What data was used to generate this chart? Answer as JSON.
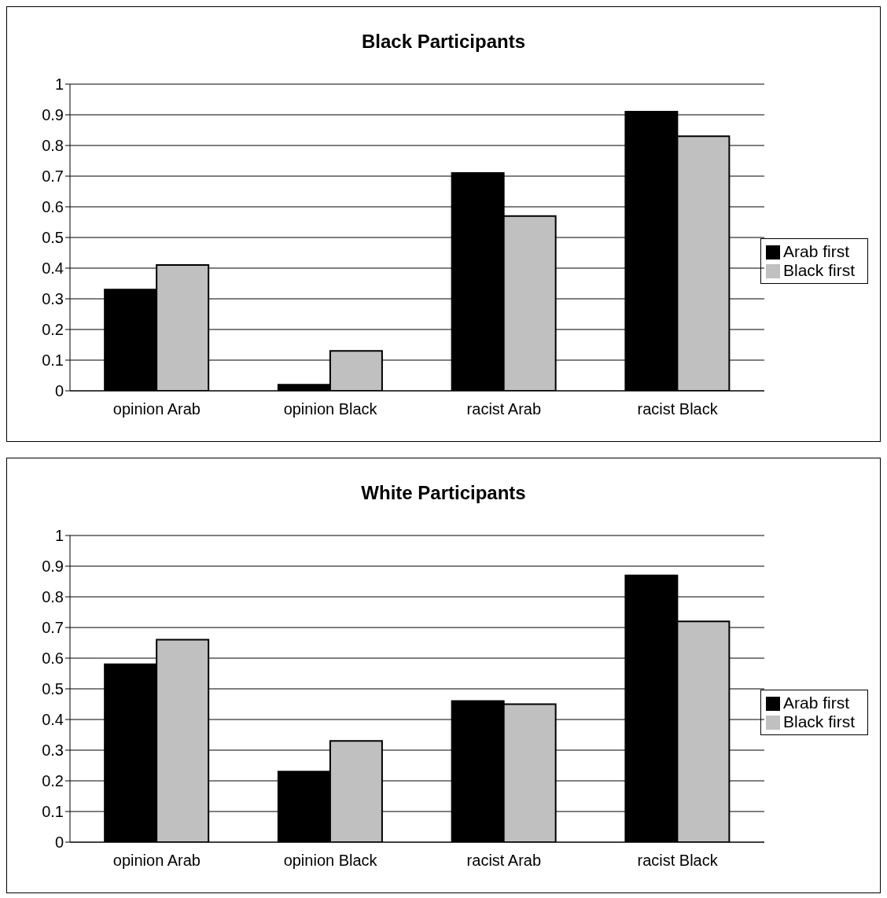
{
  "chart_data": [
    {
      "type": "bar",
      "title": "Black Participants",
      "categories": [
        "opinion Arab",
        "opinion Black",
        "racist Arab",
        "racist Black"
      ],
      "series": [
        {
          "name": "Arab first",
          "color": "#000000",
          "values": [
            0.33,
            0.02,
            0.71,
            0.91
          ]
        },
        {
          "name": "Black first",
          "color": "#c0c0c0",
          "values": [
            0.41,
            0.13,
            0.57,
            0.83
          ]
        }
      ],
      "ylim": [
        0,
        1
      ],
      "yticks": [
        0,
        0.1,
        0.2,
        0.3,
        0.4,
        0.5,
        0.6,
        0.7,
        0.8,
        0.9,
        1
      ],
      "grid": "y",
      "legend": "right"
    },
    {
      "type": "bar",
      "title": "White Participants",
      "categories": [
        "opinion Arab",
        "opinion Black",
        "racist Arab",
        "racist Black"
      ],
      "series": [
        {
          "name": "Arab first",
          "color": "#000000",
          "values": [
            0.58,
            0.23,
            0.46,
            0.87
          ]
        },
        {
          "name": "Black first",
          "color": "#c0c0c0",
          "values": [
            0.66,
            0.33,
            0.45,
            0.72
          ]
        }
      ],
      "ylim": [
        0,
        1
      ],
      "yticks": [
        0,
        0.1,
        0.2,
        0.3,
        0.4,
        0.5,
        0.6,
        0.7,
        0.8,
        0.9,
        1
      ],
      "grid": "y",
      "legend": "right"
    }
  ]
}
